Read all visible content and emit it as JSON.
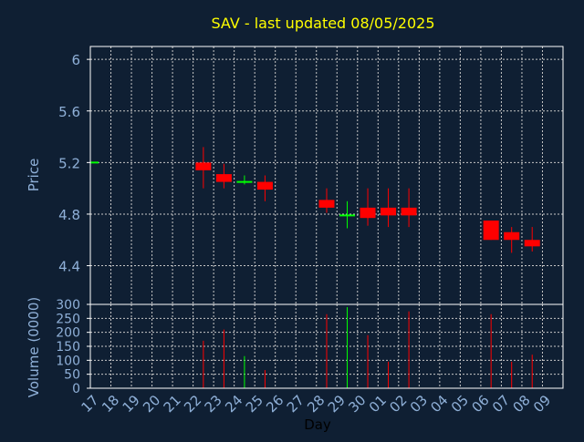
{
  "colors": {
    "background": "#0f1f33",
    "plot_background": "#0f1f33",
    "title": "#ffff00",
    "axis_text": "#8fb0d8",
    "grid": "#c8c8c8",
    "frame": "#ffffff",
    "up": "#00ff00",
    "down": "#ff0000",
    "xlabel": "#000000"
  },
  "chart_data": [
    {
      "type": "candlestick",
      "title": "SAV - last updated 08/05/2025",
      "ylabel": "Price",
      "ylim": [
        4.1,
        6.1
      ],
      "yticks": [
        4.4,
        4.8,
        5.2,
        5.6,
        6
      ],
      "ytick_labels": [
        "4.4",
        "4.8",
        "5.2",
        "5.6",
        "6"
      ],
      "grid": true,
      "x_count": 23,
      "candles": [
        {
          "x": 0,
          "open": 5.2,
          "close": 5.2,
          "high": 5.2,
          "low": 5.2
        },
        {
          "x": 5,
          "open": 5.2,
          "close": 5.14,
          "high": 5.32,
          "low": 5.0
        },
        {
          "x": 6,
          "open": 5.11,
          "close": 5.05,
          "high": 5.19,
          "low": 5.0
        },
        {
          "x": 7,
          "open": 5.05,
          "close": 5.05,
          "high": 5.1,
          "low": 5.03
        },
        {
          "x": 8,
          "open": 5.05,
          "close": 4.99,
          "high": 5.1,
          "low": 4.9
        },
        {
          "x": 11,
          "open": 4.91,
          "close": 4.85,
          "high": 5.0,
          "low": 4.81
        },
        {
          "x": 12,
          "open": 4.79,
          "close": 4.79,
          "high": 4.9,
          "low": 4.69
        },
        {
          "x": 13,
          "open": 4.85,
          "close": 4.77,
          "high": 5.0,
          "low": 4.71
        },
        {
          "x": 14,
          "open": 4.85,
          "close": 4.79,
          "high": 5.0,
          "low": 4.7
        },
        {
          "x": 15,
          "open": 4.85,
          "close": 4.79,
          "high": 5.0,
          "low": 4.7
        },
        {
          "x": 19,
          "open": 4.75,
          "close": 4.6,
          "high": 4.75,
          "low": 4.6
        },
        {
          "x": 20,
          "open": 4.66,
          "close": 4.6,
          "high": 4.7,
          "low": 4.5
        },
        {
          "x": 21,
          "open": 4.6,
          "close": 4.55,
          "high": 4.7,
          "low": 4.51
        }
      ]
    },
    {
      "type": "bar",
      "ylabel": "Volume (0000)",
      "xlabel": "Day",
      "ylim": [
        0,
        300
      ],
      "yticks": [
        0,
        50,
        100,
        150,
        200,
        250,
        300
      ],
      "ytick_labels": [
        "0",
        "50",
        "100",
        "150",
        "200",
        "250",
        "300"
      ],
      "grid": true,
      "categories": [
        "17",
        "18",
        "19",
        "20",
        "21",
        "22",
        "23",
        "24",
        "25",
        "26",
        "27",
        "28",
        "29",
        "30",
        "01",
        "02",
        "03",
        "04",
        "05",
        "06",
        "07",
        "08",
        "09"
      ],
      "bars": [
        {
          "x": 5,
          "value": 170,
          "dir": "down"
        },
        {
          "x": 6,
          "value": 210,
          "dir": "down"
        },
        {
          "x": 7,
          "value": 115,
          "dir": "up"
        },
        {
          "x": 8,
          "value": 65,
          "dir": "down"
        },
        {
          "x": 11,
          "value": 265,
          "dir": "down"
        },
        {
          "x": 12,
          "value": 290,
          "dir": "up"
        },
        {
          "x": 13,
          "value": 190,
          "dir": "down"
        },
        {
          "x": 14,
          "value": 95,
          "dir": "down"
        },
        {
          "x": 15,
          "value": 275,
          "dir": "down"
        },
        {
          "x": 19,
          "value": 265,
          "dir": "down"
        },
        {
          "x": 20,
          "value": 95,
          "dir": "down"
        },
        {
          "x": 21,
          "value": 120,
          "dir": "down"
        }
      ]
    }
  ]
}
